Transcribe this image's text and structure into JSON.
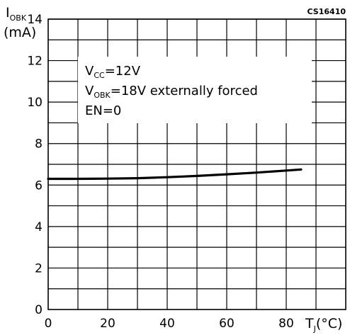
{
  "chart_data": {
    "type": "line",
    "figure_id": "CS16410",
    "ylabel": {
      "main": "I",
      "sub": "OBK",
      "unit": "(mA)"
    },
    "xlabel": {
      "main": "T",
      "sub": "J",
      "unit": "(°C)"
    },
    "xlim": [
      0,
      100
    ],
    "ylim": [
      0,
      14
    ],
    "x_ticks": [
      "0",
      "20",
      "40",
      "60",
      "80"
    ],
    "y_ticks": [
      "0",
      "2",
      "4",
      "6",
      "8",
      "10",
      "12",
      "14"
    ],
    "grid": true,
    "annotations": [
      {
        "main": "V",
        "sub": "CC",
        "rest": "=12V"
      },
      {
        "main": "V",
        "sub": "OBK",
        "rest": "=18V  externally  forced"
      },
      {
        "main": "EN=0",
        "sub": "",
        "rest": ""
      }
    ],
    "series": [
      {
        "x": [
          0,
          10,
          20,
          30,
          40,
          50,
          60,
          70,
          80,
          85
        ],
        "y": [
          6.3,
          6.3,
          6.31,
          6.33,
          6.38,
          6.44,
          6.52,
          6.6,
          6.7,
          6.75
        ]
      }
    ]
  }
}
